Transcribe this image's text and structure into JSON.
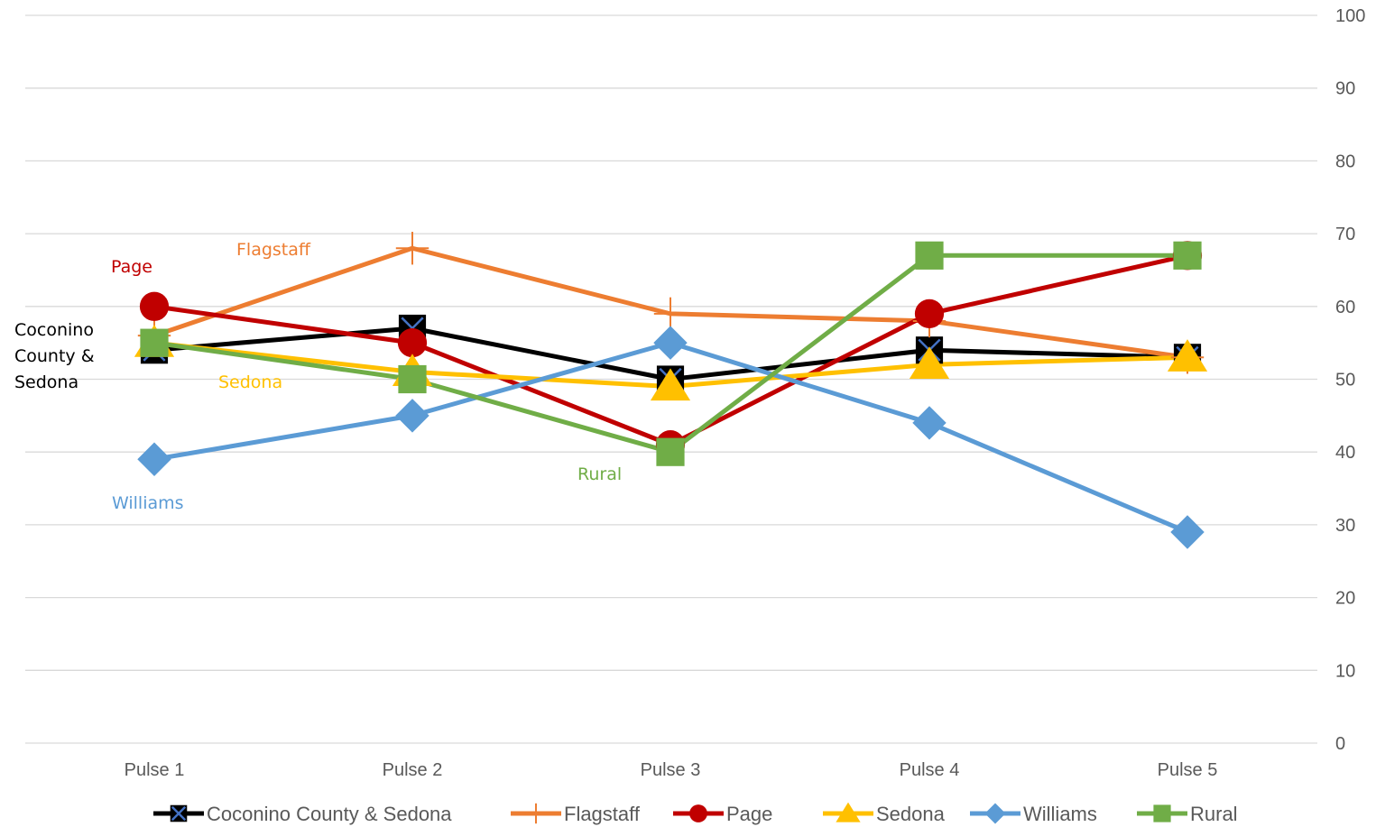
{
  "chart_data": {
    "type": "line",
    "title": "",
    "xlabel": "",
    "ylabel": "",
    "categories": [
      "Pulse 1",
      "Pulse 2",
      "Pulse 3",
      "Pulse 4",
      "Pulse 5"
    ],
    "ylim": [
      0,
      100
    ],
    "yticks": [
      0,
      10,
      20,
      30,
      40,
      50,
      60,
      70,
      80,
      90,
      100
    ],
    "y_axis_side": "right",
    "grid": true,
    "legend_placement": "bottom",
    "series": [
      {
        "name": "Coconino County & Sedona",
        "values": [
          54,
          57,
          50,
          54,
          53
        ],
        "color": "#000000",
        "marker": "square-x"
      },
      {
        "name": "Flagstaff",
        "values": [
          56,
          68,
          59,
          58,
          53
        ],
        "color": "#ED7D31",
        "marker": "plus"
      },
      {
        "name": "Page",
        "values": [
          60,
          55,
          41,
          59,
          67
        ],
        "color": "#C00000",
        "marker": "circle"
      },
      {
        "name": "Sedona",
        "values": [
          55,
          51,
          49,
          52,
          53
        ],
        "color": "#FFC000",
        "marker": "triangle"
      },
      {
        "name": "Williams",
        "values": [
          39,
          45,
          55,
          44,
          29
        ],
        "color": "#5B9BD5",
        "marker": "diamond"
      },
      {
        "name": "Rural",
        "values": [
          55,
          50,
          40,
          67,
          67
        ],
        "color": "#70AD47",
        "marker": "square"
      }
    ],
    "annotations": [
      {
        "lines": [
          "Coconino",
          "County &",
          "Sedona"
        ],
        "color": "#000000"
      },
      {
        "lines": [
          "Flagstaff"
        ],
        "color": "#ED7D31"
      },
      {
        "lines": [
          "Page"
        ],
        "color": "#C00000"
      },
      {
        "lines": [
          "Sedona"
        ],
        "color": "#FFC000"
      },
      {
        "lines": [
          "Williams"
        ],
        "color": "#5B9BD5"
      },
      {
        "lines": [
          "Rural"
        ],
        "color": "#70AD47"
      }
    ]
  }
}
